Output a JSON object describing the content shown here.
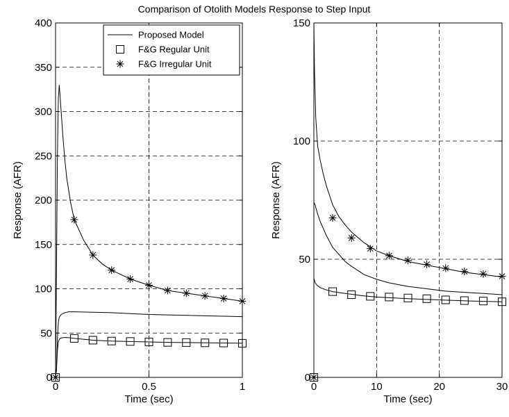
{
  "title": "Comparison of Otolith Models Response to Step Input",
  "chart_data": [
    {
      "type": "line",
      "xlabel": "Time (sec)",
      "ylabel": "Response (AFR)",
      "xlim": [
        0,
        1
      ],
      "ylim": [
        0,
        400
      ],
      "xticks": [
        0,
        0.5,
        1
      ],
      "xtick_labels": [
        "0",
        "0.5",
        "1"
      ],
      "yticks": [
        0,
        50,
        100,
        150,
        200,
        250,
        300,
        350,
        400
      ],
      "ytick_labels": [
        "0",
        "50",
        "100",
        "150",
        "200",
        "250",
        "300",
        "350",
        "400"
      ],
      "grid": true,
      "legend_position": "top-right",
      "series": [
        {
          "name": "Proposed Model",
          "style": "line",
          "x": [
            0,
            0.005,
            0.01,
            0.015,
            0.02,
            0.03,
            0.05,
            0.07,
            0.1,
            0.2,
            0.3,
            0.4,
            0.5,
            0.6,
            0.7,
            0.8,
            0.9,
            1.0
          ],
          "y": [
            0,
            10,
            45,
            62,
            68,
            71,
            73,
            74,
            74,
            73.5,
            73,
            72,
            71,
            70.5,
            70,
            69.5,
            69,
            68.5
          ]
        },
        {
          "name": "Proposed Model",
          "style": "line",
          "x": [
            0,
            0.005,
            0.01,
            0.015,
            0.02,
            0.03,
            0.04,
            0.05,
            0.06,
            0.08,
            0.1,
            0.15,
            0.2,
            0.25,
            0.3,
            0.35,
            0.4,
            0.5,
            0.6,
            0.7,
            0.8,
            0.9,
            1.0
          ],
          "y": [
            0,
            120,
            250,
            315,
            330,
            300,
            270,
            245,
            225,
            198,
            178,
            155,
            138,
            128,
            121,
            116,
            111,
            104,
            98,
            95,
            92,
            89,
            86
          ]
        },
        {
          "name": "Proposed Model",
          "style": "line",
          "x": [
            0,
            0.005,
            0.01,
            0.015,
            0.02,
            0.03,
            0.05,
            0.07,
            0.1,
            0.2,
            0.3,
            0.4,
            0.5,
            0.6,
            0.7,
            0.8,
            0.9,
            1.0
          ],
          "y": [
            0,
            8,
            30,
            40,
            43,
            44.5,
            45,
            44.8,
            44,
            42,
            41,
            40.5,
            40,
            39.5,
            39.3,
            39,
            38.8,
            38.5
          ]
        },
        {
          "name": "F&G Regular Unit",
          "style": "square",
          "x": [
            0,
            0.1,
            0.2,
            0.3,
            0.4,
            0.5,
            0.6,
            0.7,
            0.8,
            0.9,
            1.0
          ],
          "y": [
            0,
            44,
            42,
            41,
            40.5,
            40,
            39.5,
            39.3,
            39,
            38.8,
            38.5
          ]
        },
        {
          "name": "F&G Irregular Unit",
          "style": "star",
          "x": [
            0,
            0.1,
            0.2,
            0.3,
            0.4,
            0.5,
            0.6,
            0.7,
            0.8,
            0.9,
            1.0
          ],
          "y": [
            0,
            178,
            138,
            121,
            111,
            104,
            98,
            95,
            92,
            89,
            86
          ]
        }
      ],
      "legend": [
        "Proposed Model",
        "F&G Regular Unit",
        "F&G Irregular Unit"
      ]
    },
    {
      "type": "line",
      "xlabel": "Time (sec)",
      "ylabel": "Response (AFR)",
      "xlim": [
        0,
        30
      ],
      "ylim": [
        0,
        150
      ],
      "xticks": [
        0,
        10,
        20,
        30
      ],
      "xtick_labels": [
        "0",
        "10",
        "20",
        "30"
      ],
      "yticks": [
        0,
        50,
        100,
        150
      ],
      "ytick_labels": [
        "0",
        "50",
        "100",
        "150"
      ],
      "grid": true,
      "series": [
        {
          "style": "line",
          "x": [
            0,
            0.1,
            0.3,
            0.6,
            1,
            1.5,
            2,
            3,
            4,
            5,
            6,
            8,
            10,
            12,
            15,
            18,
            21,
            24,
            27,
            30
          ],
          "y": [
            150,
            130,
            110,
            98,
            92,
            86,
            81,
            73,
            68,
            64.5,
            61.5,
            57,
            53.5,
            51.5,
            49,
            47.5,
            46,
            44.5,
            43.5,
            42.5
          ]
        },
        {
          "style": "line",
          "x": [
            0,
            0.2,
            0.5,
            1,
            2,
            3,
            4,
            5,
            6,
            8,
            10,
            12,
            15,
            18,
            21,
            24,
            27,
            30
          ],
          "y": [
            74,
            73,
            70,
            66,
            60,
            55,
            52,
            49,
            47,
            43.5,
            41.5,
            40,
            38.5,
            37.5,
            36.5,
            36,
            35.5,
            35
          ]
        },
        {
          "style": "line",
          "x": [
            0,
            0.2,
            0.5,
            1,
            2,
            3,
            5,
            8,
            10,
            15,
            20,
            25,
            30
          ],
          "y": [
            42,
            40,
            39,
            38,
            37,
            36.3,
            35.5,
            34.5,
            34,
            33.3,
            32.8,
            32.3,
            32
          ]
        },
        {
          "style": "square",
          "x": [
            0,
            3,
            6,
            9,
            12,
            15,
            18,
            21,
            24,
            27,
            30
          ],
          "y": [
            0,
            36.3,
            35,
            34.3,
            34,
            33.6,
            33.3,
            32.8,
            32.5,
            32.3,
            32
          ]
        },
        {
          "style": "star",
          "x": [
            0,
            3,
            6,
            9,
            12,
            15,
            18,
            21,
            24,
            27,
            30
          ],
          "y": [
            0,
            67.5,
            59,
            54.5,
            51.5,
            49.5,
            47.8,
            46.2,
            44.8,
            43.8,
            42.8
          ]
        }
      ]
    }
  ]
}
